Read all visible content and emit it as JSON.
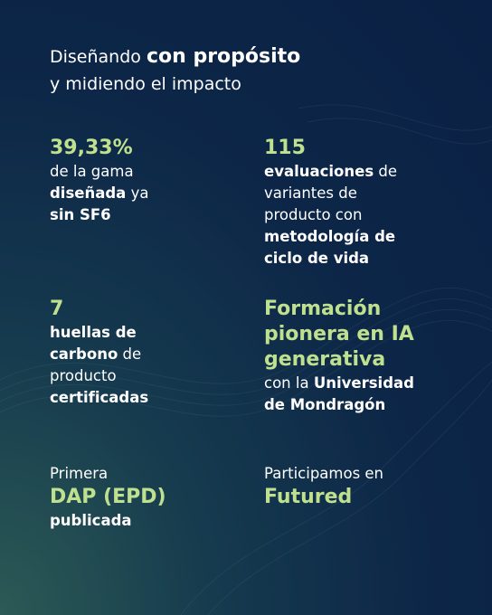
{
  "title": {
    "lines": [
      [
        {
          "text": "Diseñando",
          "style": "regular"
        },
        {
          "text": "con propósito",
          "style": "bold"
        }
      ],
      [
        {
          "text": "y midiendo el impacto",
          "style": "regular"
        }
      ]
    ]
  },
  "blocks": [
    {
      "column": "left",
      "row": 0,
      "lines": [
        [
          {
            "text": "39,33%",
            "style": "accent"
          }
        ],
        [
          {
            "text": "de la gama",
            "style": "regular"
          }
        ],
        [
          {
            "text": "diseñada",
            "style": "bold"
          },
          {
            "text": "ya",
            "style": "regular"
          }
        ],
        [
          {
            "text": "sin SF6",
            "style": "bold"
          }
        ]
      ]
    },
    {
      "column": "right",
      "row": 0,
      "lines": [
        [
          {
            "text": "115",
            "style": "accent"
          }
        ],
        [
          {
            "text": "evaluaciones",
            "style": "bold"
          },
          {
            "text": "de",
            "style": "regular"
          }
        ],
        [
          {
            "text": "variantes de",
            "style": "regular"
          }
        ],
        [
          {
            "text": "producto con",
            "style": "regular"
          }
        ],
        [
          {
            "text": "metodología de",
            "style": "bold"
          }
        ],
        [
          {
            "text": "ciclo de vida",
            "style": "bold"
          }
        ]
      ]
    },
    {
      "column": "left",
      "row": 1,
      "lines": [
        [
          {
            "text": "7",
            "style": "accent"
          }
        ],
        [
          {
            "text": "huellas de",
            "style": "bold"
          }
        ],
        [
          {
            "text": "carbono",
            "style": "bold"
          },
          {
            "text": "de",
            "style": "regular"
          }
        ],
        [
          {
            "text": "producto",
            "style": "regular"
          }
        ],
        [
          {
            "text": "certificadas",
            "style": "bold"
          }
        ]
      ]
    },
    {
      "column": "right",
      "row": 1,
      "lines": [
        [
          {
            "text": "Formación",
            "style": "accent"
          }
        ],
        [
          {
            "text": "pionera en IA",
            "style": "accent"
          }
        ],
        [
          {
            "text": "generativa",
            "style": "accent"
          }
        ],
        [
          {
            "text": "con la",
            "style": "regular"
          },
          {
            "text": "Universidad",
            "style": "bold"
          }
        ],
        [
          {
            "text": "de Mondragón",
            "style": "bold"
          }
        ]
      ]
    },
    {
      "column": "left",
      "row": 2,
      "lines": [
        [
          {
            "text": "Primera",
            "style": "regular"
          }
        ],
        [
          {
            "text": "DAP (EPD)",
            "style": "accent"
          }
        ],
        [
          {
            "text": "publicada",
            "style": "bold"
          }
        ]
      ]
    },
    {
      "column": "right",
      "row": 2,
      "lines": [
        [
          {
            "text": "Participamos en",
            "style": "regular"
          }
        ],
        [
          {
            "text": "Futured",
            "style": "accent"
          }
        ]
      ]
    }
  ]
}
